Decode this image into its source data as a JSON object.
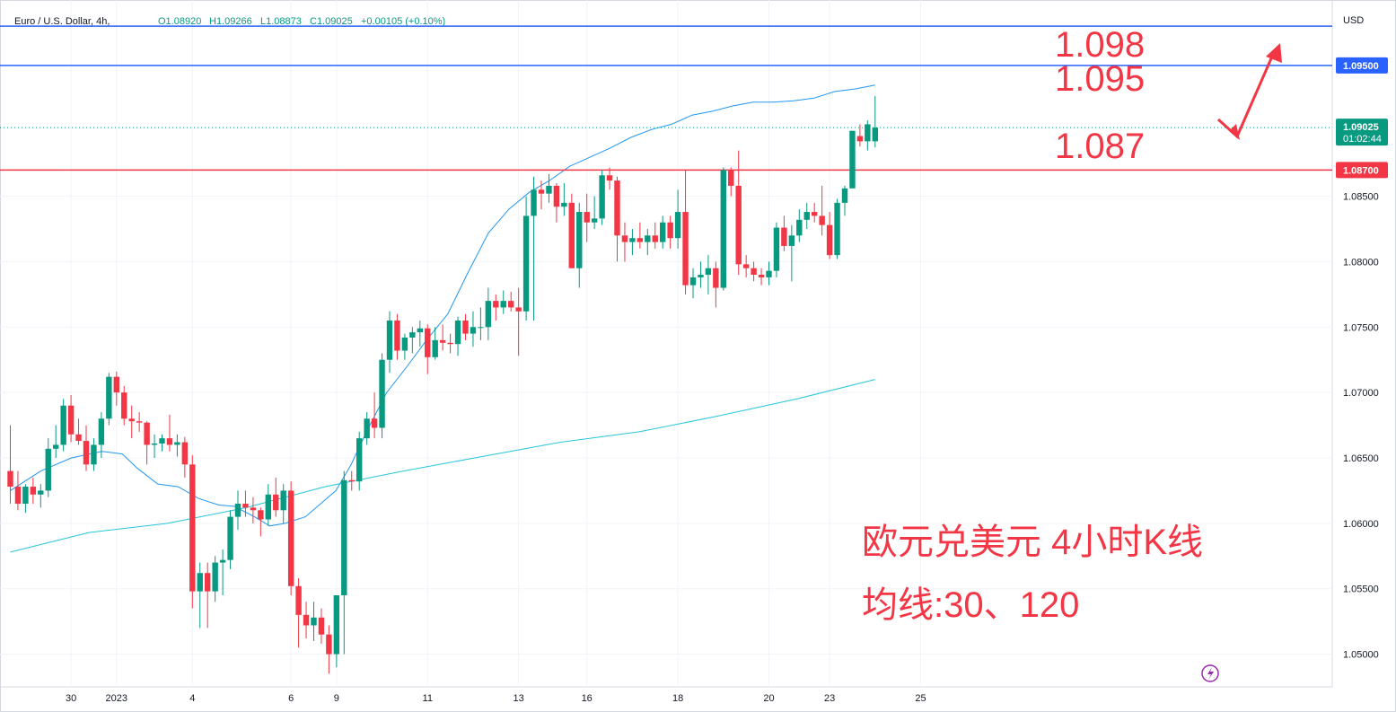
{
  "chart_data": {
    "type": "candlestick",
    "symbol": "Euro / U.S. Dollar, 4h,",
    "ohlc_readout": {
      "O": "O1.08920",
      "H": "H1.09266",
      "L": "L1.08873",
      "C": "C1.09025",
      "change": "+0.00105 (+0.10%)"
    },
    "currency": "USD",
    "ylim": [
      1.0475,
      1.1
    ],
    "y_ticks": [
      "1.05000",
      "1.05500",
      "1.06000",
      "1.06500",
      "1.07000",
      "1.07500",
      "1.08000",
      "1.08500"
    ],
    "x_ticks": [
      "30",
      "2023",
      "4",
      "6",
      "9",
      "11",
      "13",
      "16",
      "18",
      "20",
      "23",
      "25"
    ],
    "x_tick_index": [
      8,
      14,
      24,
      37,
      43,
      55,
      67,
      76,
      88,
      100,
      108,
      120
    ],
    "horizontal_lines": [
      {
        "value": 1.098,
        "color": "#2962ff"
      },
      {
        "value": 1.095,
        "color": "#2962ff",
        "label": "1.09500"
      },
      {
        "value": 1.087,
        "color": "#f23645",
        "label": "1.08700"
      }
    ],
    "current_price": {
      "label": "1.09025",
      "countdown": "01:02:44",
      "value": 1.09025
    },
    "annotations": {
      "level_1098": "1.098",
      "level_1095": "1.095",
      "level_1087": "1.087",
      "title_cn": "欧元兑美元 4小时K线",
      "ma_cn": "均线:30、120"
    },
    "candles": [
      [
        1.064,
        1.0675,
        1.0615,
        1.0628
      ],
      [
        1.0628,
        1.064,
        1.061,
        1.0615
      ],
      [
        1.0615,
        1.063,
        1.0608,
        1.0628
      ],
      [
        1.0628,
        1.0635,
        1.0615,
        1.0622
      ],
      [
        1.0622,
        1.063,
        1.0612,
        1.0625
      ],
      [
        1.0625,
        1.0665,
        1.062,
        1.0657
      ],
      [
        1.0657,
        1.0675,
        1.065,
        1.066
      ],
      [
        1.066,
        1.0695,
        1.0655,
        1.069
      ],
      [
        1.069,
        1.0698,
        1.0662,
        1.0668
      ],
      [
        1.0668,
        1.068,
        1.066,
        1.0663
      ],
      [
        1.0663,
        1.0675,
        1.064,
        1.0645
      ],
      [
        1.0645,
        1.0665,
        1.064,
        1.066
      ],
      [
        1.066,
        1.0685,
        1.065,
        1.068
      ],
      [
        1.068,
        1.0715,
        1.0675,
        1.0712
      ],
      [
        1.0712,
        1.0716,
        1.069,
        1.07
      ],
      [
        1.07,
        1.0705,
        1.0675,
        1.068
      ],
      [
        1.068,
        1.069,
        1.0665,
        1.0678
      ],
      [
        1.0678,
        1.0685,
        1.067,
        1.0677
      ],
      [
        1.0677,
        1.0678,
        1.0645,
        1.066
      ],
      [
        1.066,
        1.0668,
        1.065,
        1.0661
      ],
      [
        1.0661,
        1.0668,
        1.0655,
        1.0665
      ],
      [
        1.0665,
        1.0683,
        1.0655,
        1.066
      ],
      [
        1.066,
        1.0668,
        1.0651,
        1.0662
      ],
      [
        1.0662,
        1.0666,
        1.0635,
        1.0645
      ],
      [
        1.0645,
        1.0652,
        1.0535,
        1.0548
      ],
      [
        1.0548,
        1.057,
        1.052,
        1.0562
      ],
      [
        1.0562,
        1.057,
        1.052,
        1.0548
      ],
      [
        1.0548,
        1.0575,
        1.054,
        1.057
      ],
      [
        1.057,
        1.058,
        1.0545,
        1.0572
      ],
      [
        1.0572,
        1.061,
        1.0565,
        1.0605
      ],
      [
        1.0605,
        1.0625,
        1.0595,
        1.0615
      ],
      [
        1.0615,
        1.0625,
        1.0605,
        1.0612
      ],
      [
        1.0612,
        1.062,
        1.06,
        1.061
      ],
      [
        1.061,
        1.0612,
        1.059,
        1.0603
      ],
      [
        1.0603,
        1.063,
        1.0598,
        1.0622
      ],
      [
        1.0622,
        1.0635,
        1.0605,
        1.061
      ],
      [
        1.061,
        1.063,
        1.06,
        1.0625
      ],
      [
        1.0625,
        1.0632,
        1.0545,
        1.0552
      ],
      [
        1.0552,
        1.0558,
        1.0505,
        1.053
      ],
      [
        1.053,
        1.054,
        1.0512,
        1.0522
      ],
      [
        1.0522,
        1.054,
        1.051,
        1.0528
      ],
      [
        1.0528,
        1.0535,
        1.0508,
        1.0515
      ],
      [
        1.0515,
        1.0522,
        1.0485,
        1.05
      ],
      [
        1.05,
        1.0545,
        1.049,
        1.0545
      ],
      [
        1.0545,
        1.064,
        1.05,
        1.0633
      ],
      [
        1.0633,
        1.064,
        1.0625,
        1.0632
      ],
      [
        1.0632,
        1.067,
        1.0625,
        1.0665
      ],
      [
        1.0665,
        1.0685,
        1.066,
        1.068
      ],
      [
        1.068,
        1.07,
        1.0665,
        1.0673
      ],
      [
        1.0673,
        1.073,
        1.0665,
        1.0725
      ],
      [
        1.0725,
        1.0762,
        1.0715,
        1.0755
      ],
      [
        1.0755,
        1.076,
        1.0725,
        1.0732
      ],
      [
        1.0732,
        1.0745,
        1.0725,
        1.0742
      ],
      [
        1.0742,
        1.075,
        1.073,
        1.0746
      ],
      [
        1.0746,
        1.0755,
        1.0735,
        1.0749
      ],
      [
        1.0749,
        1.0752,
        1.0714,
        1.0727
      ],
      [
        1.0727,
        1.075,
        1.0725,
        1.074
      ],
      [
        1.074,
        1.0752,
        1.0732,
        1.0738
      ],
      [
        1.0738,
        1.0745,
        1.073,
        1.0737
      ],
      [
        1.0737,
        1.0758,
        1.0728,
        1.0755
      ],
      [
        1.0755,
        1.076,
        1.074,
        1.0745
      ],
      [
        1.0745,
        1.0762,
        1.0735,
        1.075
      ],
      [
        1.075,
        1.0765,
        1.074,
        1.075
      ],
      [
        1.075,
        1.078,
        1.074,
        1.077
      ],
      [
        1.077,
        1.0775,
        1.0755,
        1.0765
      ],
      [
        1.0765,
        1.0778,
        1.076,
        1.077
      ],
      [
        1.077,
        1.0777,
        1.0762,
        1.0765
      ],
      [
        1.0765,
        1.078,
        1.0728,
        1.0762
      ],
      [
        1.0762,
        1.085,
        1.0755,
        1.0835
      ],
      [
        1.0835,
        1.0865,
        1.0755,
        1.0855
      ],
      [
        1.0855,
        1.0862,
        1.084,
        1.0852
      ],
      [
        1.0852,
        1.0867,
        1.0845,
        1.0858
      ],
      [
        1.0858,
        1.086,
        1.083,
        1.0842
      ],
      [
        1.0842,
        1.086,
        1.0835,
        1.0845
      ],
      [
        1.0845,
        1.0852,
        1.0795,
        1.0795
      ],
      [
        1.0795,
        1.0845,
        1.078,
        1.0838
      ],
      [
        1.0838,
        1.0852,
        1.0815,
        1.083
      ],
      [
        1.083,
        1.085,
        1.0825,
        1.0833
      ],
      [
        1.0833,
        1.087,
        1.0828,
        1.0866
      ],
      [
        1.0866,
        1.0872,
        1.0855,
        1.0862
      ],
      [
        1.0862,
        1.0865,
        1.08,
        1.082
      ],
      [
        1.082,
        1.083,
        1.08,
        1.0815
      ],
      [
        1.0815,
        1.0825,
        1.0805,
        1.0818
      ],
      [
        1.0818,
        1.083,
        1.081,
        1.0815
      ],
      [
        1.0815,
        1.0825,
        1.0805,
        1.082
      ],
      [
        1.082,
        1.083,
        1.081,
        1.0815
      ],
      [
        1.0815,
        1.0835,
        1.081,
        1.083
      ],
      [
        1.083,
        1.0835,
        1.081,
        1.0818
      ],
      [
        1.0818,
        1.0855,
        1.081,
        1.0838
      ],
      [
        1.0838,
        1.087,
        1.0775,
        1.0782
      ],
      [
        1.0782,
        1.0795,
        1.0772,
        1.0788
      ],
      [
        1.0788,
        1.08,
        1.078,
        1.079
      ],
      [
        1.079,
        1.0805,
        1.0775,
        1.0795
      ],
      [
        1.0795,
        1.08,
        1.0765,
        1.078
      ],
      [
        1.078,
        1.0872,
        1.0778,
        1.087
      ],
      [
        1.087,
        1.0872,
        1.085,
        1.0858
      ],
      [
        1.0858,
        1.0885,
        1.079,
        1.0798
      ],
      [
        1.0798,
        1.0805,
        1.0788,
        1.0795
      ],
      [
        1.0795,
        1.08,
        1.0785,
        1.079
      ],
      [
        1.079,
        1.0795,
        1.0782,
        1.0788
      ],
      [
        1.0788,
        1.08,
        1.0782,
        1.0793
      ],
      [
        1.0793,
        1.083,
        1.0788,
        1.0826
      ],
      [
        1.0826,
        1.0835,
        1.0808,
        1.0812
      ],
      [
        1.0812,
        1.0828,
        1.0785,
        1.082
      ],
      [
        1.082,
        1.084,
        1.0815,
        1.0832
      ],
      [
        1.0832,
        1.0845,
        1.0825,
        1.0838
      ],
      [
        1.0838,
        1.0845,
        1.083,
        1.0835
      ],
      [
        1.0835,
        1.0858,
        1.082,
        1.0828
      ],
      [
        1.0828,
        1.0838,
        1.0802,
        1.0805
      ],
      [
        1.0805,
        1.0848,
        1.0802,
        1.0845
      ],
      [
        1.0845,
        1.0858,
        1.0835,
        1.0856
      ],
      [
        1.0856,
        1.09,
        1.086,
        1.09
      ],
      [
        1.0896,
        1.0905,
        1.0888,
        1.0892
      ],
      [
        1.0892,
        1.0908,
        1.0885,
        1.0905
      ],
      [
        1.0892,
        1.09266,
        1.08873,
        1.09025
      ]
    ],
    "ma30": [
      [
        0,
        1.0625
      ],
      [
        6,
        1.064
      ],
      [
        12,
        1.065
      ],
      [
        18,
        1.0655
      ],
      [
        22,
        1.0653
      ],
      [
        25,
        1.0642
      ],
      [
        29,
        1.063
      ],
      [
        33,
        1.0628
      ],
      [
        37,
        1.0619
      ],
      [
        41,
        1.0614
      ],
      [
        44,
        1.0613
      ],
      [
        48,
        1.0605
      ],
      [
        51,
        1.0598
      ],
      [
        54,
        1.06
      ],
      [
        58,
        1.0605
      ],
      [
        61,
        1.0615
      ],
      [
        64,
        1.0625
      ],
      [
        67,
        1.0645
      ],
      [
        70,
        1.067
      ],
      [
        74,
        1.07
      ],
      [
        78,
        1.072
      ],
      [
        82,
        1.0741
      ],
      [
        86,
        1.076
      ],
      [
        90,
        1.0792
      ],
      [
        94,
        1.0822
      ],
      [
        98,
        1.084
      ],
      [
        102,
        1.0853
      ],
      [
        106,
        1.0862
      ],
      [
        110,
        1.0873
      ],
      [
        114,
        1.088
      ],
      [
        118,
        1.0887
      ],
      [
        122,
        1.0895
      ],
      [
        126,
        1.0901
      ],
      [
        130,
        1.0905
      ],
      [
        134,
        1.0912
      ],
      [
        138,
        1.0915
      ],
      [
        142,
        1.0919
      ],
      [
        146,
        1.0922
      ],
      [
        150,
        1.0922
      ],
      [
        154,
        1.0923
      ],
      [
        158,
        1.0925
      ],
      [
        162,
        1.093
      ],
      [
        166,
        1.0932
      ],
      [
        170,
        1.0935
      ]
    ],
    "ma120": [
      [
        0,
        1.0578
      ],
      [
        20,
        1.0593
      ],
      [
        40,
        1.06
      ],
      [
        60,
        1.0612
      ],
      [
        80,
        1.0628
      ],
      [
        100,
        1.064
      ],
      [
        120,
        1.0651
      ],
      [
        140,
        1.0662
      ],
      [
        160,
        1.067
      ],
      [
        180,
        1.0682
      ],
      [
        200,
        1.0695
      ],
      [
        220,
        1.071
      ]
    ]
  }
}
